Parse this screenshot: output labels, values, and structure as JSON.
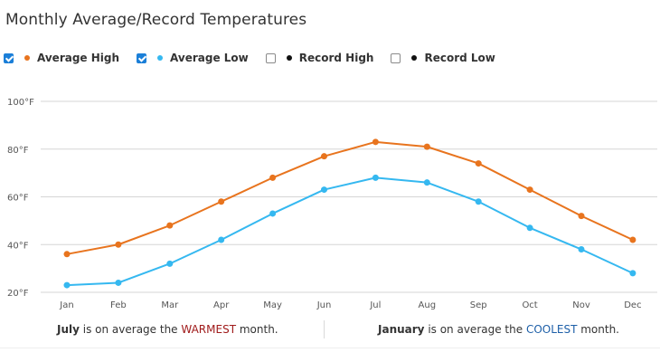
{
  "title": "Monthly Average/Record Temperatures",
  "legend": [
    {
      "label": "Average High",
      "checked": true,
      "color": "#e8741e"
    },
    {
      "label": "Average Low",
      "checked": true,
      "color": "#35b8f0"
    },
    {
      "label": "Record High",
      "checked": false,
      "color": "#111111"
    },
    {
      "label": "Record Low",
      "checked": false,
      "color": "#111111"
    }
  ],
  "chart_data": {
    "type": "line",
    "title": "Monthly Average/Record Temperatures",
    "categories": [
      "Jan",
      "Feb",
      "Mar",
      "Apr",
      "May",
      "Jun",
      "Jul",
      "Aug",
      "Sep",
      "Oct",
      "Nov",
      "Dec"
    ],
    "series": [
      {
        "name": "Average High",
        "color": "#e8741e",
        "values": [
          36,
          40,
          48,
          58,
          68,
          77,
          83,
          81,
          74,
          63,
          52,
          42
        ]
      },
      {
        "name": "Average Low",
        "color": "#35b8f0",
        "values": [
          23,
          24,
          32,
          42,
          53,
          63,
          68,
          66,
          58,
          47,
          38,
          28
        ]
      }
    ],
    "yticks": [
      20,
      40,
      60,
      80,
      100
    ],
    "ytick_labels": [
      "20°F",
      "40°F",
      "60°F",
      "80°F",
      "100°F"
    ],
    "ylim": [
      20,
      100
    ],
    "xlabel": "",
    "ylabel": "",
    "grid": true
  },
  "footer": {
    "warm_month": "July",
    "warm_text_before": " is on average the ",
    "warm_word": "WARMEST",
    "warm_text_after": " month.",
    "cool_month": "January",
    "cool_text_before": " is on average the ",
    "cool_word": "COOLEST",
    "cool_text_after": " month."
  },
  "colors": {
    "grid": "#d6d6d6",
    "axis_text": "#555555",
    "warm": "#a01b1b",
    "cool": "#1d5fa8"
  }
}
